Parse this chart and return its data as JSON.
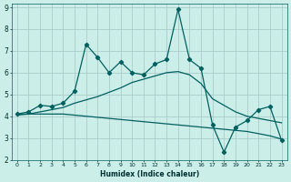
{
  "xlabel": "Humidex (Indice chaleur)",
  "x_values": [
    0,
    1,
    2,
    3,
    4,
    5,
    6,
    7,
    8,
    9,
    10,
    11,
    12,
    13,
    14,
    15,
    16,
    17,
    18,
    19,
    20,
    21,
    22,
    23
  ],
  "line1_y": [
    4.1,
    4.2,
    4.5,
    4.45,
    4.6,
    5.15,
    7.3,
    6.7,
    6.0,
    6.5,
    6.0,
    5.9,
    6.4,
    6.6,
    8.9,
    6.6,
    6.2,
    3.6,
    2.35,
    3.5,
    3.8,
    4.3,
    4.45,
    2.9
  ],
  "line2_y": [
    4.05,
    4.1,
    4.2,
    4.3,
    4.4,
    4.6,
    4.75,
    4.9,
    5.1,
    5.3,
    5.55,
    5.7,
    5.85,
    6.0,
    6.05,
    5.9,
    5.5,
    4.8,
    4.5,
    4.2,
    4.0,
    3.9,
    3.8,
    3.7
  ],
  "line3_y": [
    4.1,
    4.1,
    4.1,
    4.1,
    4.1,
    4.05,
    4.0,
    3.95,
    3.9,
    3.85,
    3.8,
    3.75,
    3.7,
    3.65,
    3.6,
    3.55,
    3.5,
    3.45,
    3.4,
    3.35,
    3.3,
    3.2,
    3.1,
    2.95
  ],
  "line_color": "#006060",
  "bg_color": "#cceee8",
  "grid_color": "#aacccc",
  "ylim_min": 2,
  "ylim_max": 9,
  "xlim_min": 0,
  "xlim_max": 23
}
